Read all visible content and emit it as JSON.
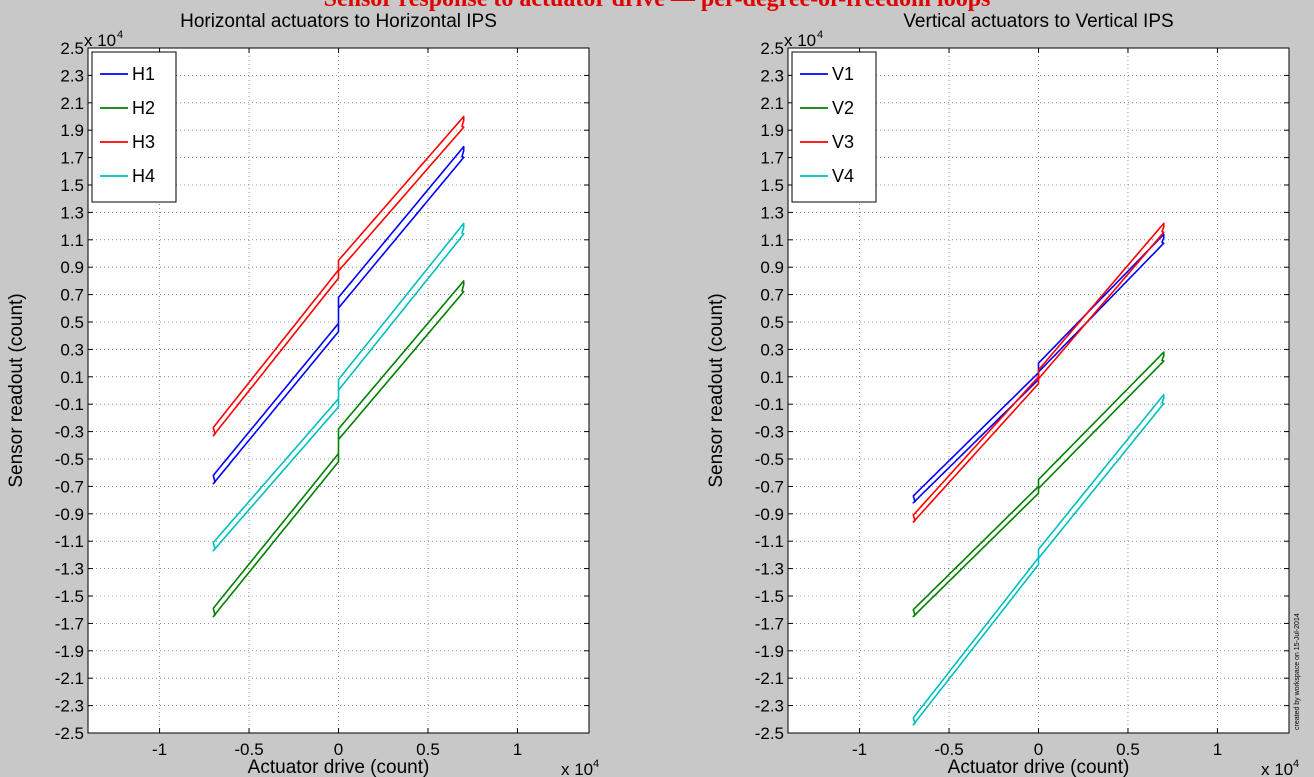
{
  "banner": {
    "text": "Sensor response to actuator drive — per-degree-of-freedom loops"
  },
  "footnote": {
    "text": "created by workspace on 15-Jul-2014"
  },
  "chart_data": [
    {
      "type": "line",
      "title": "Horizontal actuators to Horizontal IPS",
      "xlabel": "Actuator drive (count)",
      "ylabel": "Sensor readout (count)",
      "x_exponent_label": "x 10",
      "x_exponent": "4",
      "y_exponent_label": "x 10",
      "y_exponent": "4",
      "xlim": [
        -1.4,
        1.4
      ],
      "ylim": [
        -2.5,
        2.5
      ],
      "xticks": [
        "-1",
        "-0.5",
        "0",
        "0.5",
        "1"
      ],
      "xtick_values": [
        -1,
        -0.5,
        0,
        0.5,
        1
      ],
      "yticks": [
        "2.5",
        "2.3",
        "2.1",
        "1.9",
        "1.7",
        "1.5",
        "1.3",
        "1.1",
        "0.9",
        "0.7",
        "0.5",
        "0.3",
        "0.1",
        "-0.1",
        "-0.3",
        "-0.5",
        "-0.7",
        "-0.9",
        "-1.1",
        "-1.3",
        "-1.5",
        "-1.7",
        "-1.9",
        "-2.1",
        "-2.3",
        "-2.5"
      ],
      "grid": true,
      "legend_position": "top-left",
      "series": [
        {
          "name": "H1",
          "color": "#0000ff",
          "x_range": [
            -0.7,
            0.7
          ],
          "y_at_min": -0.68,
          "y_at_max": 1.78,
          "y_at_zero_up": 0.68,
          "y_at_zero_down": 0.43,
          "loop_width": 0.06
        },
        {
          "name": "H2",
          "color": "#008000",
          "x_range": [
            -0.7,
            0.7
          ],
          "y_at_min": -1.65,
          "y_at_max": 0.8,
          "y_at_zero_up": -0.28,
          "y_at_zero_down": -0.52,
          "loop_width": 0.06
        },
        {
          "name": "H3",
          "color": "#ff0000",
          "x_range": [
            -0.7,
            0.7
          ],
          "y_at_min": -0.33,
          "y_at_max": 2.0,
          "y_at_zero_up": 0.95,
          "y_at_zero_down": 0.82,
          "loop_width": 0.06
        },
        {
          "name": "H4",
          "color": "#00bfbf",
          "x_range": [
            -0.7,
            0.7
          ],
          "y_at_min": -1.17,
          "y_at_max": 1.22,
          "y_at_zero_up": 0.08,
          "y_at_zero_down": -0.12,
          "loop_width": 0.06
        }
      ]
    },
    {
      "type": "line",
      "title": "Vertical actuators to Vertical IPS",
      "xlabel": "Actuator drive (count)",
      "ylabel": "Sensor readout (count)",
      "x_exponent_label": "x 10",
      "x_exponent": "4",
      "y_exponent_label": "x 10",
      "y_exponent": "4",
      "xlim": [
        -1.4,
        1.4
      ],
      "ylim": [
        -2.5,
        2.5
      ],
      "xticks": [
        "-1",
        "-0.5",
        "0",
        "0.5",
        "1"
      ],
      "xtick_values": [
        -1,
        -0.5,
        0,
        0.5,
        1
      ],
      "yticks": [
        "2.5",
        "2.3",
        "2.1",
        "1.9",
        "1.7",
        "1.5",
        "1.3",
        "1.1",
        "0.9",
        "0.7",
        "0.5",
        "0.3",
        "0.1",
        "-0.1",
        "-0.3",
        "-0.5",
        "-0.7",
        "-0.9",
        "-1.1",
        "-1.3",
        "-1.5",
        "-1.7",
        "-1.9",
        "-2.1",
        "-2.3",
        "-2.5"
      ],
      "grid": true,
      "legend_position": "top-left",
      "series": [
        {
          "name": "V1",
          "color": "#0000ff",
          "x_range": [
            -0.7,
            0.7
          ],
          "y_at_min": -0.82,
          "y_at_max": 1.14,
          "y_at_zero_up": 0.2,
          "y_at_zero_down": 0.08,
          "loop_width": 0.05
        },
        {
          "name": "V2",
          "color": "#008000",
          "x_range": [
            -0.7,
            0.7
          ],
          "y_at_min": -1.65,
          "y_at_max": 0.28,
          "y_at_zero_up": -0.65,
          "y_at_zero_down": -0.75,
          "loop_width": 0.05
        },
        {
          "name": "V3",
          "color": "#ff0000",
          "x_range": [
            -0.7,
            0.7
          ],
          "y_at_min": -0.96,
          "y_at_max": 1.22,
          "y_at_zero_up": 0.15,
          "y_at_zero_down": 0.05,
          "loop_width": 0.05
        },
        {
          "name": "V4",
          "color": "#00bfbf",
          "x_range": [
            -0.7,
            0.7
          ],
          "y_at_min": -2.44,
          "y_at_max": -0.03,
          "y_at_zero_up": -1.16,
          "y_at_zero_down": -1.27,
          "loop_width": 0.05
        }
      ]
    }
  ]
}
